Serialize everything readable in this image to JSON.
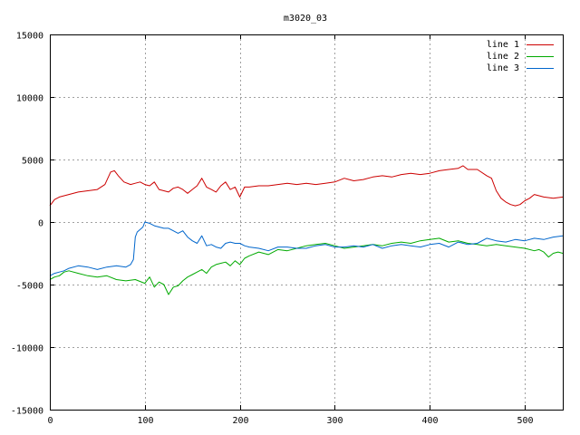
{
  "chart_data": {
    "type": "line",
    "title": "m3020_03",
    "xlabel": "",
    "ylabel": "",
    "xlim": [
      0,
      540
    ],
    "ylim": [
      -15000,
      15000
    ],
    "xticks": [
      0,
      100,
      200,
      300,
      400,
      500
    ],
    "yticks": [
      -15000,
      -10000,
      -5000,
      0,
      5000,
      10000,
      15000
    ],
    "grid": true,
    "legend_position": "top-right",
    "series": [
      {
        "name": "line 1",
        "color": "#cc0000",
        "x": [
          0,
          5,
          10,
          20,
          30,
          40,
          50,
          58,
          64,
          68,
          72,
          78,
          85,
          90,
          95,
          100,
          105,
          110,
          115,
          120,
          125,
          130,
          135,
          140,
          145,
          150,
          155,
          160,
          165,
          170,
          175,
          180,
          185,
          190,
          195,
          200,
          205,
          210,
          220,
          230,
          240,
          250,
          260,
          270,
          280,
          290,
          300,
          310,
          320,
          330,
          340,
          350,
          360,
          370,
          380,
          390,
          400,
          410,
          420,
          430,
          435,
          440,
          450,
          460,
          465,
          470,
          475,
          480,
          485,
          490,
          495,
          500,
          505,
          510,
          520,
          530,
          540
        ],
        "y": [
          1300,
          1800,
          2000,
          2200,
          2400,
          2500,
          2600,
          3000,
          4000,
          4100,
          3700,
          3200,
          3000,
          3100,
          3200,
          3000,
          2900,
          3200,
          2600,
          2500,
          2400,
          2700,
          2800,
          2600,
          2300,
          2600,
          2900,
          3500,
          2800,
          2600,
          2400,
          2900,
          3200,
          2600,
          2800,
          2000,
          2800,
          2800,
          2900,
          2900,
          3000,
          3100,
          3000,
          3100,
          3000,
          3100,
          3200,
          3500,
          3300,
          3400,
          3600,
          3700,
          3600,
          3800,
          3900,
          3800,
          3900,
          4100,
          4200,
          4300,
          4500,
          4200,
          4200,
          3700,
          3500,
          2500,
          1900,
          1600,
          1400,
          1300,
          1400,
          1700,
          1900,
          2200,
          2000,
          1900,
          2000
        ]
      },
      {
        "name": "line 2",
        "color": "#00aa00",
        "x": [
          0,
          5,
          10,
          15,
          20,
          30,
          40,
          50,
          60,
          70,
          80,
          90,
          100,
          105,
          110,
          115,
          120,
          125,
          130,
          135,
          140,
          145,
          150,
          155,
          160,
          165,
          170,
          175,
          180,
          185,
          190,
          195,
          200,
          205,
          210,
          220,
          230,
          240,
          250,
          260,
          270,
          280,
          290,
          300,
          310,
          320,
          330,
          340,
          350,
          360,
          370,
          380,
          390,
          400,
          410,
          420,
          430,
          440,
          450,
          460,
          470,
          480,
          490,
          500,
          510,
          515,
          520,
          525,
          530,
          535,
          540
        ],
        "y": [
          -4600,
          -4400,
          -4300,
          -4000,
          -3900,
          -4100,
          -4300,
          -4400,
          -4300,
          -4600,
          -4700,
          -4600,
          -4900,
          -4400,
          -5200,
          -4800,
          -5000,
          -5800,
          -5200,
          -5100,
          -4700,
          -4400,
          -4200,
          -4000,
          -3800,
          -4100,
          -3600,
          -3400,
          -3300,
          -3200,
          -3500,
          -3100,
          -3400,
          -2900,
          -2700,
          -2400,
          -2600,
          -2200,
          -2300,
          -2100,
          -1900,
          -1800,
          -1700,
          -1900,
          -2100,
          -2000,
          -1900,
          -1800,
          -1900,
          -1700,
          -1600,
          -1700,
          -1500,
          -1400,
          -1300,
          -1600,
          -1500,
          -1700,
          -1800,
          -1900,
          -1800,
          -1900,
          -2000,
          -2100,
          -2300,
          -2200,
          -2400,
          -2800,
          -2500,
          -2400,
          -2500
        ]
      },
      {
        "name": "line 3",
        "color": "#0066cc",
        "x": [
          0,
          5,
          10,
          15,
          20,
          30,
          40,
          50,
          60,
          70,
          80,
          85,
          88,
          90,
          92,
          95,
          98,
          100,
          105,
          110,
          115,
          120,
          125,
          130,
          135,
          140,
          145,
          150,
          155,
          160,
          165,
          170,
          175,
          180,
          185,
          190,
          195,
          200,
          205,
          210,
          220,
          230,
          240,
          250,
          260,
          270,
          280,
          290,
          300,
          310,
          320,
          330,
          340,
          350,
          360,
          370,
          380,
          390,
          400,
          410,
          420,
          430,
          440,
          450,
          460,
          470,
          480,
          490,
          500,
          510,
          520,
          530,
          540
        ],
        "y": [
          -4300,
          -4100,
          -4000,
          -3900,
          -3700,
          -3500,
          -3600,
          -3800,
          -3600,
          -3500,
          -3600,
          -3400,
          -3000,
          -1200,
          -800,
          -600,
          -400,
          0,
          -100,
          -300,
          -400,
          -500,
          -500,
          -700,
          -900,
          -700,
          -1200,
          -1500,
          -1700,
          -1100,
          -1900,
          -1800,
          -2000,
          -2100,
          -1700,
          -1600,
          -1700,
          -1700,
          -1900,
          -2000,
          -2100,
          -2300,
          -2000,
          -2000,
          -2100,
          -2100,
          -1900,
          -1800,
          -2000,
          -2000,
          -1900,
          -2000,
          -1800,
          -2100,
          -1900,
          -1800,
          -1900,
          -2000,
          -1800,
          -1700,
          -2000,
          -1600,
          -1800,
          -1700,
          -1300,
          -1500,
          -1600,
          -1400,
          -1500,
          -1300,
          -1400,
          -1200,
          -1100
        ]
      }
    ]
  }
}
